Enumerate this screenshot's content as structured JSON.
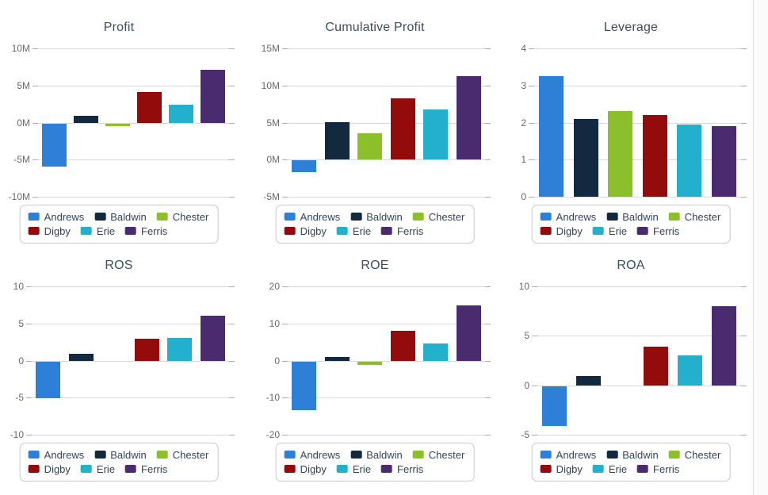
{
  "companies": [
    {
      "name": "Andrews",
      "color": "#2e7fd8"
    },
    {
      "name": "Baldwin",
      "color": "#13293f"
    },
    {
      "name": "Chester",
      "color": "#8bc02b"
    },
    {
      "name": "Digby",
      "color": "#930b0b"
    },
    {
      "name": "Erie",
      "color": "#23b0cd"
    },
    {
      "name": "Ferris",
      "color": "#4b2b70"
    }
  ],
  "theme": {
    "background": "#ffffff",
    "gridline_color": "#d9d9d9",
    "tick_color": "#ababab",
    "axis_label_color": "#6a6a6a",
    "title_color": "#3c4d5d",
    "legend_text_color": "#32455a",
    "legend_border_color": "#c9c9c9"
  },
  "chart_data": [
    {
      "type": "bar",
      "title": "Profit",
      "categories": [
        "Andrews",
        "Baldwin",
        "Chester",
        "Digby",
        "Erie",
        "Ferris"
      ],
      "values": [
        -5.8,
        0.9,
        -0.4,
        4.1,
        2.4,
        7.1
      ],
      "ylim": [
        -10,
        10
      ],
      "yticks": [
        {
          "label": "10M",
          "value": 10
        },
        {
          "label": "5M",
          "value": 5
        },
        {
          "label": "0M",
          "value": 0
        },
        {
          "label": "-5M",
          "value": -5
        },
        {
          "label": "-10M",
          "value": -10
        }
      ],
      "grid": true,
      "legend_position": "bottom",
      "legend_entries": [
        "Andrews",
        "Baldwin",
        "Chester",
        "Digby",
        "Erie",
        "Ferris"
      ]
    },
    {
      "type": "bar",
      "title": "Cumulative Profit",
      "categories": [
        "Andrews",
        "Baldwin",
        "Chester",
        "Digby",
        "Erie",
        "Ferris"
      ],
      "values": [
        -1.6,
        5.1,
        3.6,
        8.3,
        6.8,
        11.3
      ],
      "ylim": [
        -5,
        15
      ],
      "yticks": [
        {
          "label": "15M",
          "value": 15
        },
        {
          "label": "10M",
          "value": 10
        },
        {
          "label": "5M",
          "value": 5
        },
        {
          "label": "0M",
          "value": 0
        },
        {
          "label": "-5M",
          "value": -5
        }
      ],
      "grid": true,
      "legend_position": "bottom",
      "legend_entries": [
        "Andrews",
        "Baldwin",
        "Chester",
        "Digby",
        "Erie",
        "Ferris"
      ]
    },
    {
      "type": "bar",
      "title": "Leverage",
      "categories": [
        "Andrews",
        "Baldwin",
        "Chester",
        "Digby",
        "Erie",
        "Ferris"
      ],
      "values": [
        3.25,
        2.1,
        2.3,
        2.2,
        1.95,
        1.9
      ],
      "ylim": [
        0,
        4
      ],
      "yticks": [
        {
          "label": "4",
          "value": 4
        },
        {
          "label": "3",
          "value": 3
        },
        {
          "label": "2",
          "value": 2
        },
        {
          "label": "1",
          "value": 1
        },
        {
          "label": "0",
          "value": 0
        }
      ],
      "grid": true,
      "legend_position": "bottom",
      "legend_entries": [
        "Andrews",
        "Baldwin",
        "Chester",
        "Digby",
        "Erie",
        "Ferris"
      ]
    },
    {
      "type": "bar",
      "title": "ROS",
      "categories": [
        "Andrews",
        "Baldwin",
        "Chester",
        "Digby",
        "Erie",
        "Ferris"
      ],
      "values": [
        -5.0,
        0.9,
        0.0,
        2.9,
        3.0,
        6.0
      ],
      "ylim": [
        -10,
        10
      ],
      "yticks": [
        {
          "label": "10",
          "value": 10
        },
        {
          "label": "5",
          "value": 5
        },
        {
          "label": "0",
          "value": 0
        },
        {
          "label": "-5",
          "value": -5
        },
        {
          "label": "-10",
          "value": -10
        }
      ],
      "grid": true,
      "legend_position": "bottom",
      "legend_entries": [
        "Andrews",
        "Baldwin",
        "Chester",
        "Digby",
        "Erie",
        "Ferris"
      ]
    },
    {
      "type": "bar",
      "title": "ROE",
      "categories": [
        "Andrews",
        "Baldwin",
        "Chester",
        "Digby",
        "Erie",
        "Ferris"
      ],
      "values": [
        -13.1,
        0.9,
        -0.9,
        8.0,
        4.7,
        14.8
      ],
      "ylim": [
        -20,
        20
      ],
      "yticks": [
        {
          "label": "20",
          "value": 20
        },
        {
          "label": "10",
          "value": 10
        },
        {
          "label": "0",
          "value": 0
        },
        {
          "label": "-10",
          "value": -10
        },
        {
          "label": "-20",
          "value": -20
        }
      ],
      "grid": true,
      "legend_position": "bottom",
      "legend_entries": [
        "Andrews",
        "Baldwin",
        "Chester",
        "Digby",
        "Erie",
        "Ferris"
      ]
    },
    {
      "type": "bar",
      "title": "ROA",
      "categories": [
        "Andrews",
        "Baldwin",
        "Chester",
        "Digby",
        "Erie",
        "Ferris"
      ],
      "values": [
        -4.0,
        0.9,
        0.0,
        3.9,
        3.0,
        8.0
      ],
      "ylim": [
        -5,
        10
      ],
      "yticks": [
        {
          "label": "10",
          "value": 10
        },
        {
          "label": "5",
          "value": 5
        },
        {
          "label": "0",
          "value": 0
        },
        {
          "label": "-5",
          "value": -5
        }
      ],
      "grid": true,
      "legend_position": "bottom",
      "legend_entries": [
        "Andrews",
        "Baldwin",
        "Chester",
        "Digby",
        "Erie",
        "Ferris"
      ]
    }
  ]
}
